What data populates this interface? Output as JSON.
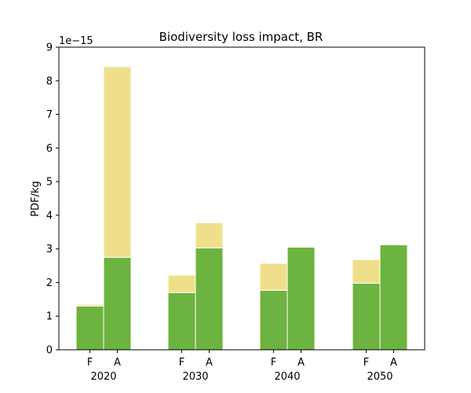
{
  "chart_data": {
    "type": "bar",
    "stacked": true,
    "title": "Biodiversity loss impact, BR",
    "ylabel": "PDF/kg",
    "xlabel": "",
    "y_multiplier": "1e−15",
    "ylim": [
      0,
      9
    ],
    "yticks": [
      "0",
      "1",
      "2",
      "3",
      "4",
      "5",
      "6",
      "7",
      "8",
      "9"
    ],
    "groups": [
      "2020",
      "2030",
      "2040",
      "2050"
    ],
    "bar_labels": [
      "F",
      "A"
    ],
    "series": [
      {
        "color": "#6db33f",
        "values": [
          [
            1.3,
            2.75
          ],
          [
            1.7,
            3.03
          ],
          [
            1.77,
            3.05
          ],
          [
            1.98,
            3.12
          ]
        ]
      },
      {
        "color": "#f0df8a",
        "values": [
          [
            0.05,
            5.67
          ],
          [
            0.52,
            0.75
          ],
          [
            0.8,
            0.0
          ],
          [
            0.7,
            0.0
          ]
        ]
      }
    ],
    "grid": false,
    "legend": "none"
  }
}
